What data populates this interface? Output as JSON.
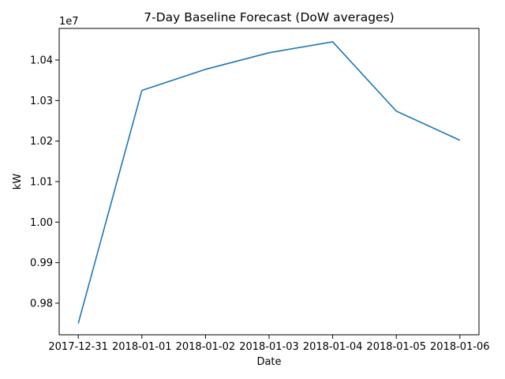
{
  "chart_data": {
    "type": "line",
    "title": "7-Day Baseline Forecast (DoW averages)",
    "xlabel": "Date",
    "ylabel": "kW",
    "y_offset_label": "1e7",
    "y_tick_labels": [
      "0.98",
      "0.99",
      "1.00",
      "1.01",
      "1.02",
      "1.03",
      "1.04"
    ],
    "y_tick_values": [
      9800000,
      9900000,
      10000000,
      10100000,
      10200000,
      10300000,
      10400000
    ],
    "ylim": [
      9722000,
      10478000
    ],
    "x_tick_labels": [
      "2017-12-31",
      "2018-01-01",
      "2018-01-02",
      "2018-01-03",
      "2018-01-04",
      "2018-01-05",
      "2018-01-06"
    ],
    "grid": false,
    "series": [
      {
        "color": "#1f77b4",
        "x": [
          "2017-12-31",
          "2018-01-01",
          "2018-01-02",
          "2018-01-03",
          "2018-01-04",
          "2018-01-05",
          "2018-01-06"
        ],
        "values": [
          9750000,
          10325000,
          10377000,
          10418000,
          10445000,
          10274000,
          10202000
        ]
      }
    ]
  }
}
